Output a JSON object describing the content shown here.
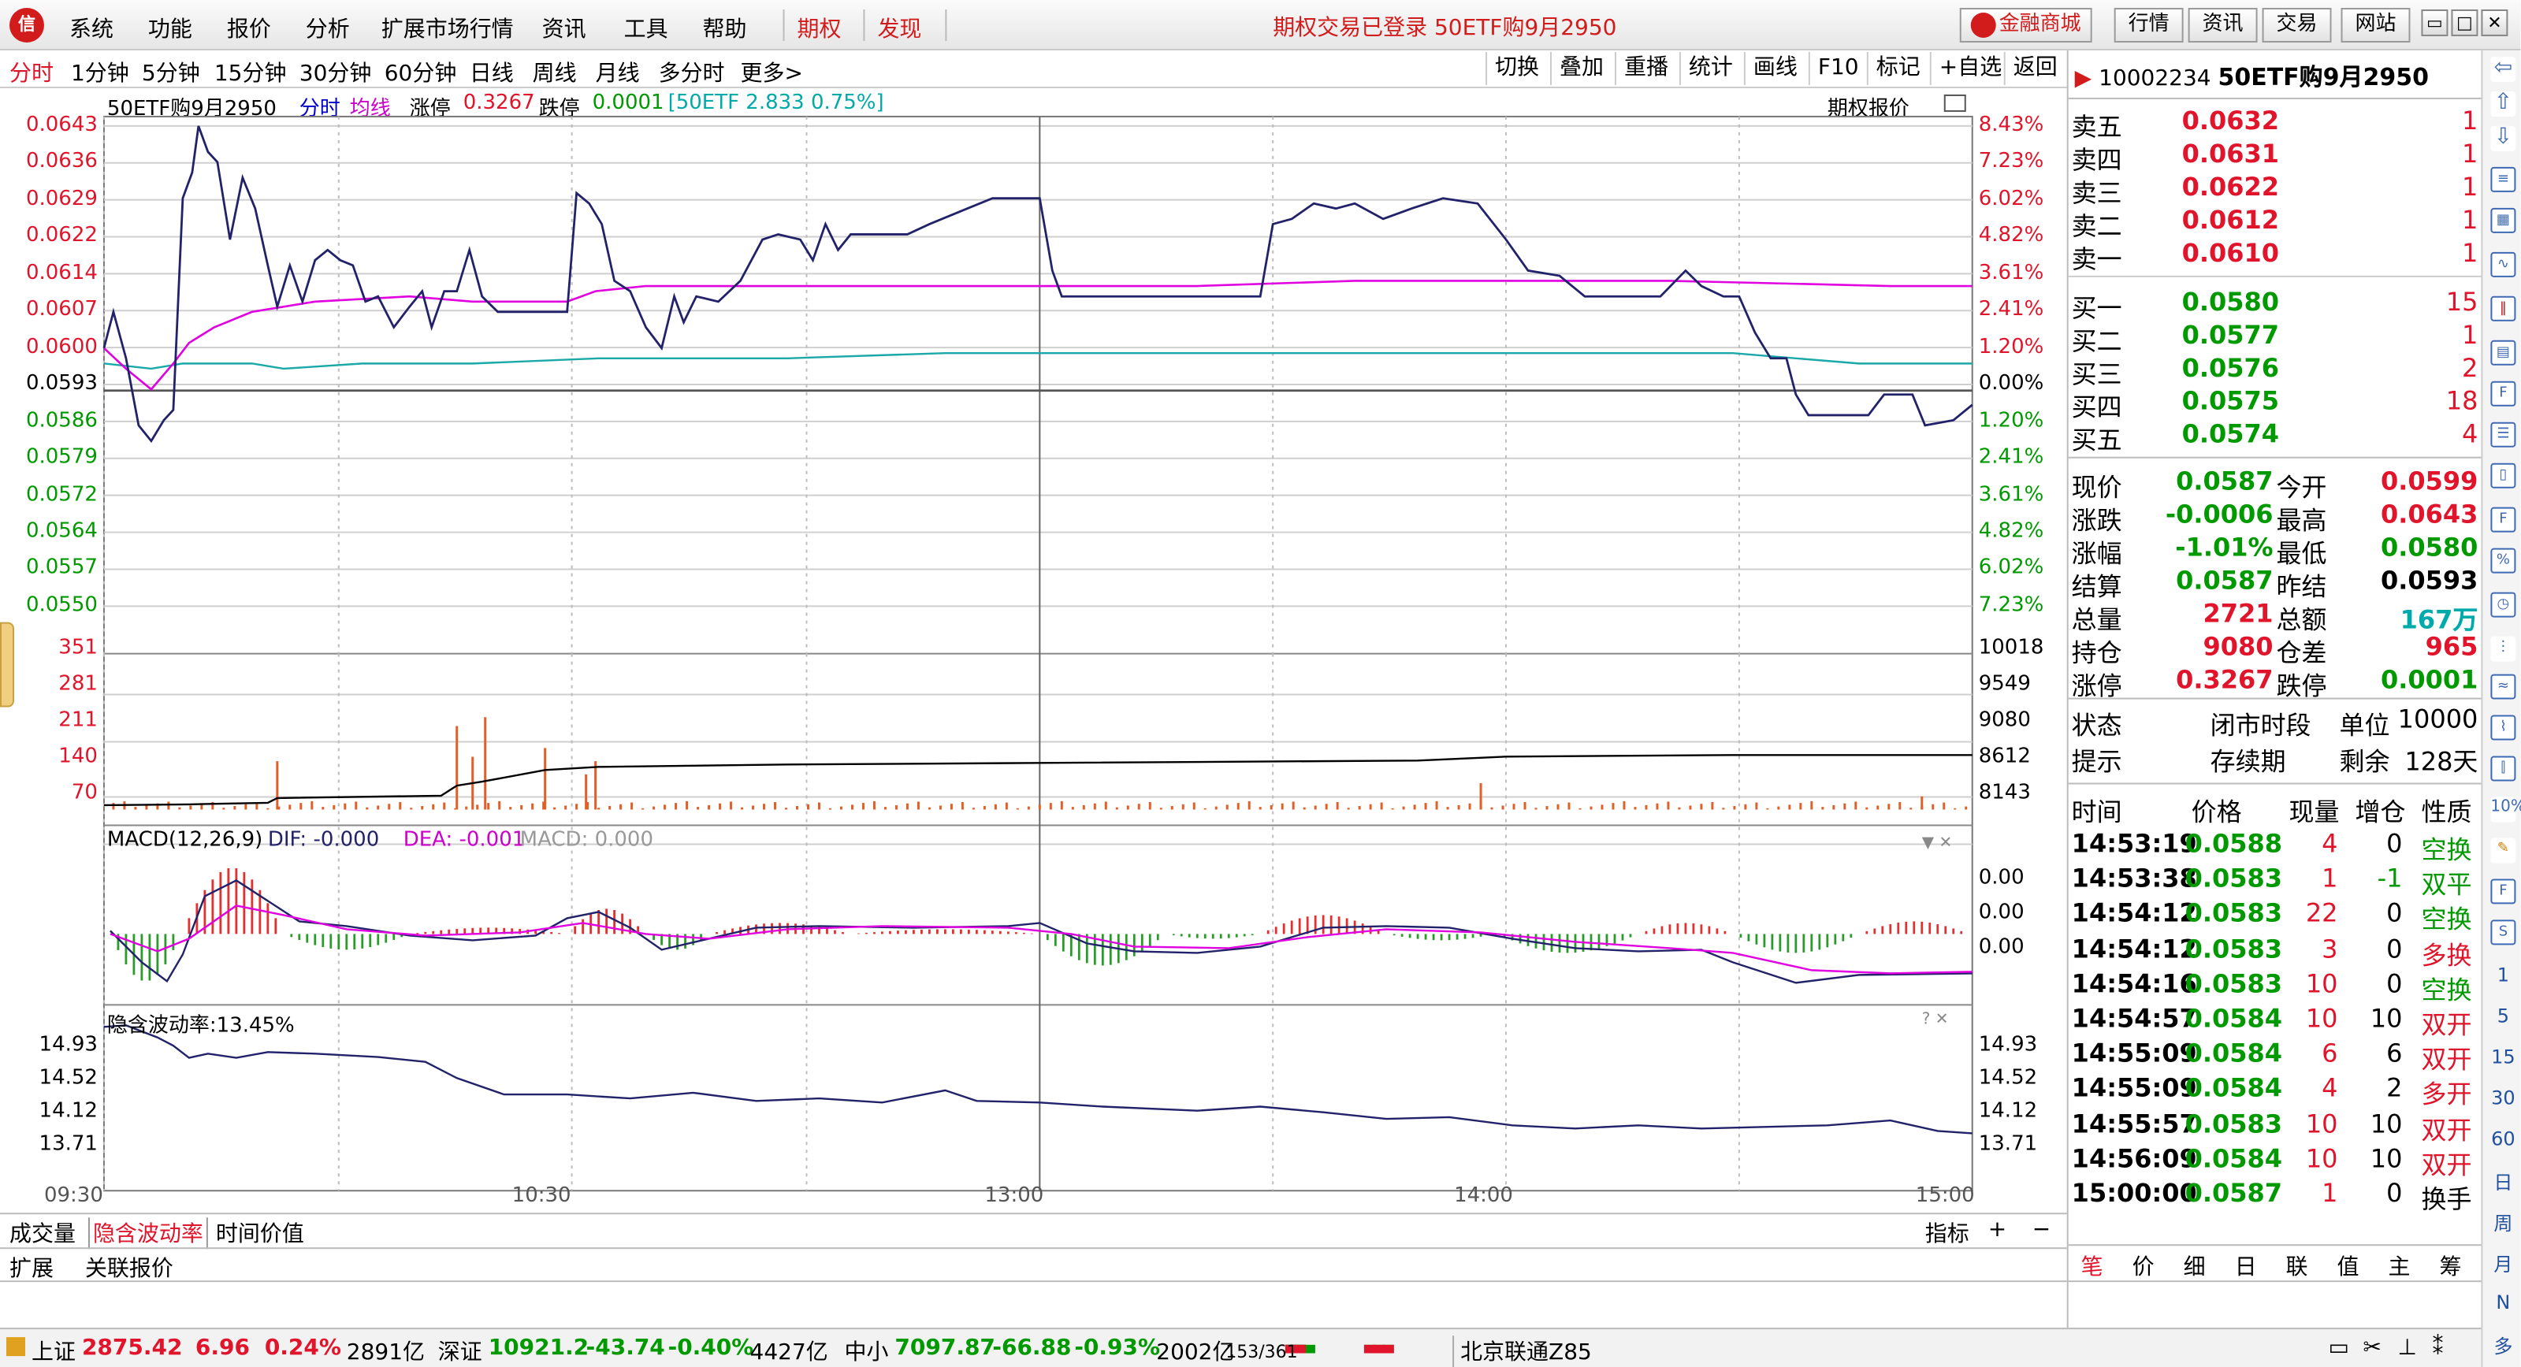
{
  "menubar": {
    "logo": "信",
    "items": [
      "系统",
      "功能",
      "报价",
      "分析",
      "扩展市场行情",
      "资讯",
      "工具",
      "帮助",
      "期权",
      "发现"
    ],
    "title": "期权交易已登录  50ETF购9月2950",
    "right_buttons": [
      "金融商城",
      "行情",
      "资讯",
      "交易",
      "网站"
    ]
  },
  "periods": [
    "分时",
    "1分钟",
    "5分钟",
    "15分钟",
    "30分钟",
    "60分钟",
    "日线",
    "周线",
    "月线",
    "多分时",
    "更多>"
  ],
  "tools": [
    "切换",
    "叠加",
    "重播",
    "统计",
    "画线",
    "F10",
    "标记",
    "+自选",
    "返回"
  ],
  "chart_header": {
    "name": "50ETF购9月2950",
    "mode": "分时",
    "avg": "均线",
    "zt_label": "涨停",
    "zt": "0.3267",
    "dt_label": "跌停",
    "dt": "0.0001",
    "etf": "[50ETF 2.833 0.75%]",
    "right": "期权报价"
  },
  "price_axis": [
    "0.0643",
    "0.0636",
    "0.0629",
    "0.0622",
    "0.0614",
    "0.0607",
    "0.0600",
    "0.0593",
    "0.0586",
    "0.0579",
    "0.0572",
    "0.0564",
    "0.0557",
    "0.0550"
  ],
  "pct_axis": [
    "8.43%",
    "7.23%",
    "6.02%",
    "4.82%",
    "3.61%",
    "2.41%",
    "1.20%",
    "0.00%",
    "1.20%",
    "2.41%",
    "3.61%",
    "4.82%",
    "6.02%",
    "7.23%"
  ],
  "vol_axis": [
    "351",
    "281",
    "211",
    "140",
    "70"
  ],
  "oi_axis": [
    "10018",
    "9549",
    "9080",
    "8612",
    "8143"
  ],
  "macd": {
    "title": "MACD(12,26,9)",
    "dif": "DIF: -0.000",
    "dea": "DEA: -0.001",
    "macd": "MACD: 0.000",
    "axis": [
      "0.00",
      "0.00",
      "0.00"
    ]
  },
  "iv": {
    "title": "隐含波动率:13.45%",
    "axis": [
      "14.93",
      "14.52",
      "14.12",
      "13.71"
    ]
  },
  "time_axis": [
    "09:30",
    "10:30",
    "13:00",
    "14:00",
    "15:00"
  ],
  "bottom_tabs": [
    "成交量",
    "隐含波动率",
    "时间价值"
  ],
  "bottom_right": [
    "指标",
    "+",
    "−"
  ],
  "sub_tabs": [
    "扩展",
    "关联报价"
  ],
  "quote": {
    "code": "10002234",
    "name": "50ETF购9月2950",
    "sells": [
      [
        "卖五",
        "0.0632",
        "1"
      ],
      [
        "卖四",
        "0.0631",
        "1"
      ],
      [
        "卖三",
        "0.0622",
        "1"
      ],
      [
        "卖二",
        "0.0612",
        "1"
      ],
      [
        "卖一",
        "0.0610",
        "1"
      ]
    ],
    "buys": [
      [
        "买一",
        "0.0580",
        "15"
      ],
      [
        "买二",
        "0.0577",
        "1"
      ],
      [
        "买三",
        "0.0576",
        "2"
      ],
      [
        "买四",
        "0.0575",
        "18"
      ],
      [
        "买五",
        "0.0574",
        "4"
      ]
    ],
    "stats": [
      [
        "现价",
        "0.0587",
        "今开",
        "0.0599"
      ],
      [
        "涨跌",
        "-0.0006",
        "最高",
        "0.0643"
      ],
      [
        "涨幅",
        "-1.01%",
        "最低",
        "0.0580"
      ],
      [
        "结算",
        "0.0587",
        "昨结",
        "0.0593"
      ],
      [
        "总量",
        "2721",
        "总额",
        "167万"
      ],
      [
        "持仓",
        "9080",
        "仓差",
        "965"
      ],
      [
        "涨停",
        "0.3267",
        "跌停",
        "0.0001"
      ]
    ],
    "status": [
      [
        "状态",
        "闭市时段",
        "单位",
        "10000"
      ],
      [
        "提示",
        "存续期",
        "剩余",
        "128天"
      ]
    ],
    "trade_header": [
      "时间",
      "价格",
      "现量",
      "增仓",
      "性质"
    ],
    "trades": [
      [
        "14:53:19",
        "0.0588",
        "4",
        "0",
        "空换"
      ],
      [
        "14:53:38",
        "0.0583",
        "1",
        "-1",
        "双平"
      ],
      [
        "14:54:12",
        "0.0583",
        "22",
        "0",
        "空换"
      ],
      [
        "14:54:12",
        "0.0583",
        "3",
        "0",
        "多换"
      ],
      [
        "14:54:16",
        "0.0583",
        "10",
        "0",
        "空换"
      ],
      [
        "14:54:57",
        "0.0584",
        "10",
        "10",
        "双开"
      ],
      [
        "14:55:09",
        "0.0584",
        "6",
        "6",
        "双开"
      ],
      [
        "14:55:09",
        "0.0584",
        "4",
        "2",
        "多开"
      ],
      [
        "14:55:57",
        "0.0583",
        "10",
        "10",
        "双开"
      ],
      [
        "14:56:09",
        "0.0584",
        "10",
        "10",
        "双开"
      ],
      [
        "15:00:00",
        "0.0587",
        "1",
        "0",
        "换手"
      ]
    ],
    "bottom_tabs": [
      "笔",
      "价",
      "细",
      "日",
      "联",
      "值",
      "主",
      "筹"
    ]
  },
  "status_bar": {
    "sh_name": "上证",
    "sh": "2875.42",
    "sh_chg": "6.96",
    "sh_pct": "0.24%",
    "sh_amt": "2891亿",
    "sz_name": "深证",
    "sz": "10921.2",
    "sz_chg": "-43.74",
    "sz_pct": "-0.40%",
    "sz_amt": "4427亿",
    "zx_name": "中小",
    "zx": "7097.87",
    "zx_chg": "-66.88",
    "zx_pct": "-0.93%",
    "zx_amt": "2002亿",
    "bj": "北京联通Z85",
    "page": "153/361"
  },
  "side_numbers": [
    "1",
    "5",
    "15",
    "30",
    "60",
    "日",
    "周",
    "月",
    "N",
    "多"
  ]
}
